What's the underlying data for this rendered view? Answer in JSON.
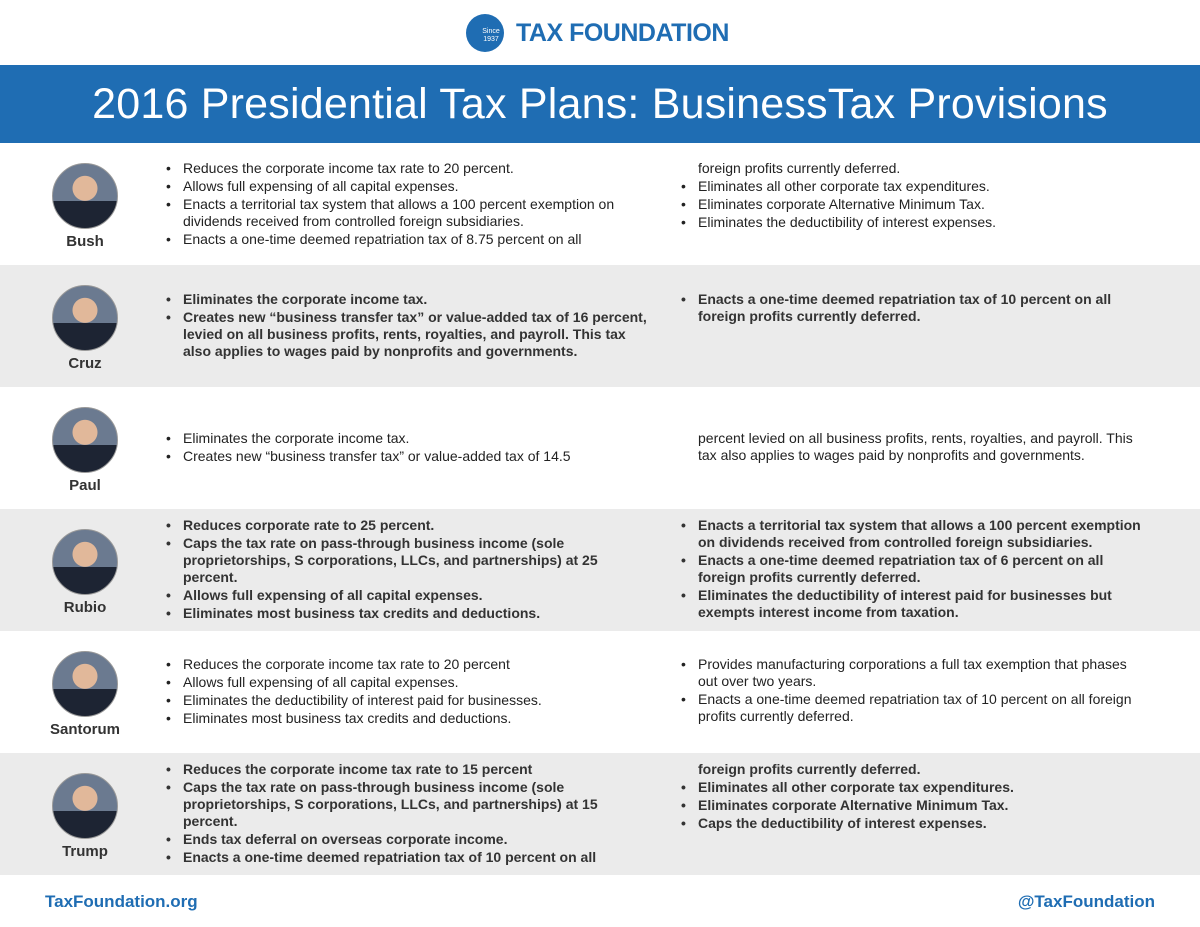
{
  "header": {
    "logo_text": "TAX FOUNDATION",
    "logo_badge_top": "Since",
    "logo_badge_bottom": "1937"
  },
  "title": "2016 Presidential Tax Plans: BusinessTax Provisions",
  "candidates": [
    {
      "name": "Bush",
      "left_bullets": [
        "Reduces the corporate income tax rate to 20 percent.",
        "Allows full expensing of all capital expenses.",
        "Enacts a territorial tax system that allows a 100 percent exemption on dividends received from controlled foreign subsidiaries.",
        "Enacts a one-time deemed repatriation tax of 8.75 percent on all"
      ],
      "right_continued": "foreign profits currently deferred.",
      "right_bullets": [
        "Eliminates all other corporate tax expenditures.",
        "Eliminates corporate Alternative Minimum Tax.",
        "Eliminates the deductibility of interest expenses."
      ]
    },
    {
      "name": "Cruz",
      "left_bullets": [
        "Eliminates the corporate income tax.",
        "Creates new “business transfer tax” or value-added tax of 16 percent, levied on all business profits, rents, royalties, and payroll. This tax also applies to wages paid by nonprofits and governments."
      ],
      "right_bullets": [
        "Enacts a one-time deemed repatriation tax of 10 percent on all foreign profits currently deferred."
      ]
    },
    {
      "name": "Paul",
      "left_bullets": [
        "Eliminates the corporate income tax.",
        "Creates new “business transfer tax” or value-added tax of 14.5"
      ],
      "right_continued": "percent levied on all business profits, rents, royalties, and payroll. This tax also applies to wages paid by nonprofits and governments."
    },
    {
      "name": "Rubio",
      "left_bullets": [
        "Reduces corporate rate to 25 percent.",
        "Caps the tax rate on pass-through business income (sole proprietorships, S corporations, LLCs, and partnerships) at 25 percent.",
        "Allows full expensing of all capital expenses.",
        "Eliminates most business tax credits and deductions."
      ],
      "right_bullets": [
        "Enacts a territorial tax system that allows a 100 percent exemption on dividends received from controlled foreign subsidiaries.",
        "Enacts a one-time deemed repatriation tax of 6 percent on all foreign profits currently deferred.",
        "Eliminates the deductibility of interest paid for businesses but exempts interest income from taxation."
      ]
    },
    {
      "name": "Santorum",
      "left_bullets": [
        "Reduces the corporate income tax rate to 20 percent",
        "Allows full expensing of all capital expenses.",
        "Eliminates the deductibility of interest paid for businesses.",
        "Eliminates most business tax credits and deductions."
      ],
      "right_bullets": [
        "Provides manufacturing corporations a full tax exemption that phases out over two years.",
        "Enacts a one-time deemed repatriation tax of 10 percent on all foreign profits currently deferred."
      ]
    },
    {
      "name": "Trump",
      "left_bullets": [
        "Reduces the corporate income tax rate to 15 percent",
        "Caps the tax rate on pass-through business income (sole proprietorships, S corporations, LLCs, and partnerships) at 15 percent.",
        "Ends tax deferral on overseas corporate income.",
        "Enacts a one-time deemed repatriation tax of 10 percent on all"
      ],
      "right_continued": "foreign profits currently deferred.",
      "right_bullets": [
        "Eliminates all other corporate tax expenditures.",
        "Eliminates corporate Alternative Minimum Tax.",
        "Caps the deductibility of interest expenses."
      ]
    }
  ],
  "footer": {
    "website": "TaxFoundation.org",
    "handle": "@TaxFoundation"
  }
}
